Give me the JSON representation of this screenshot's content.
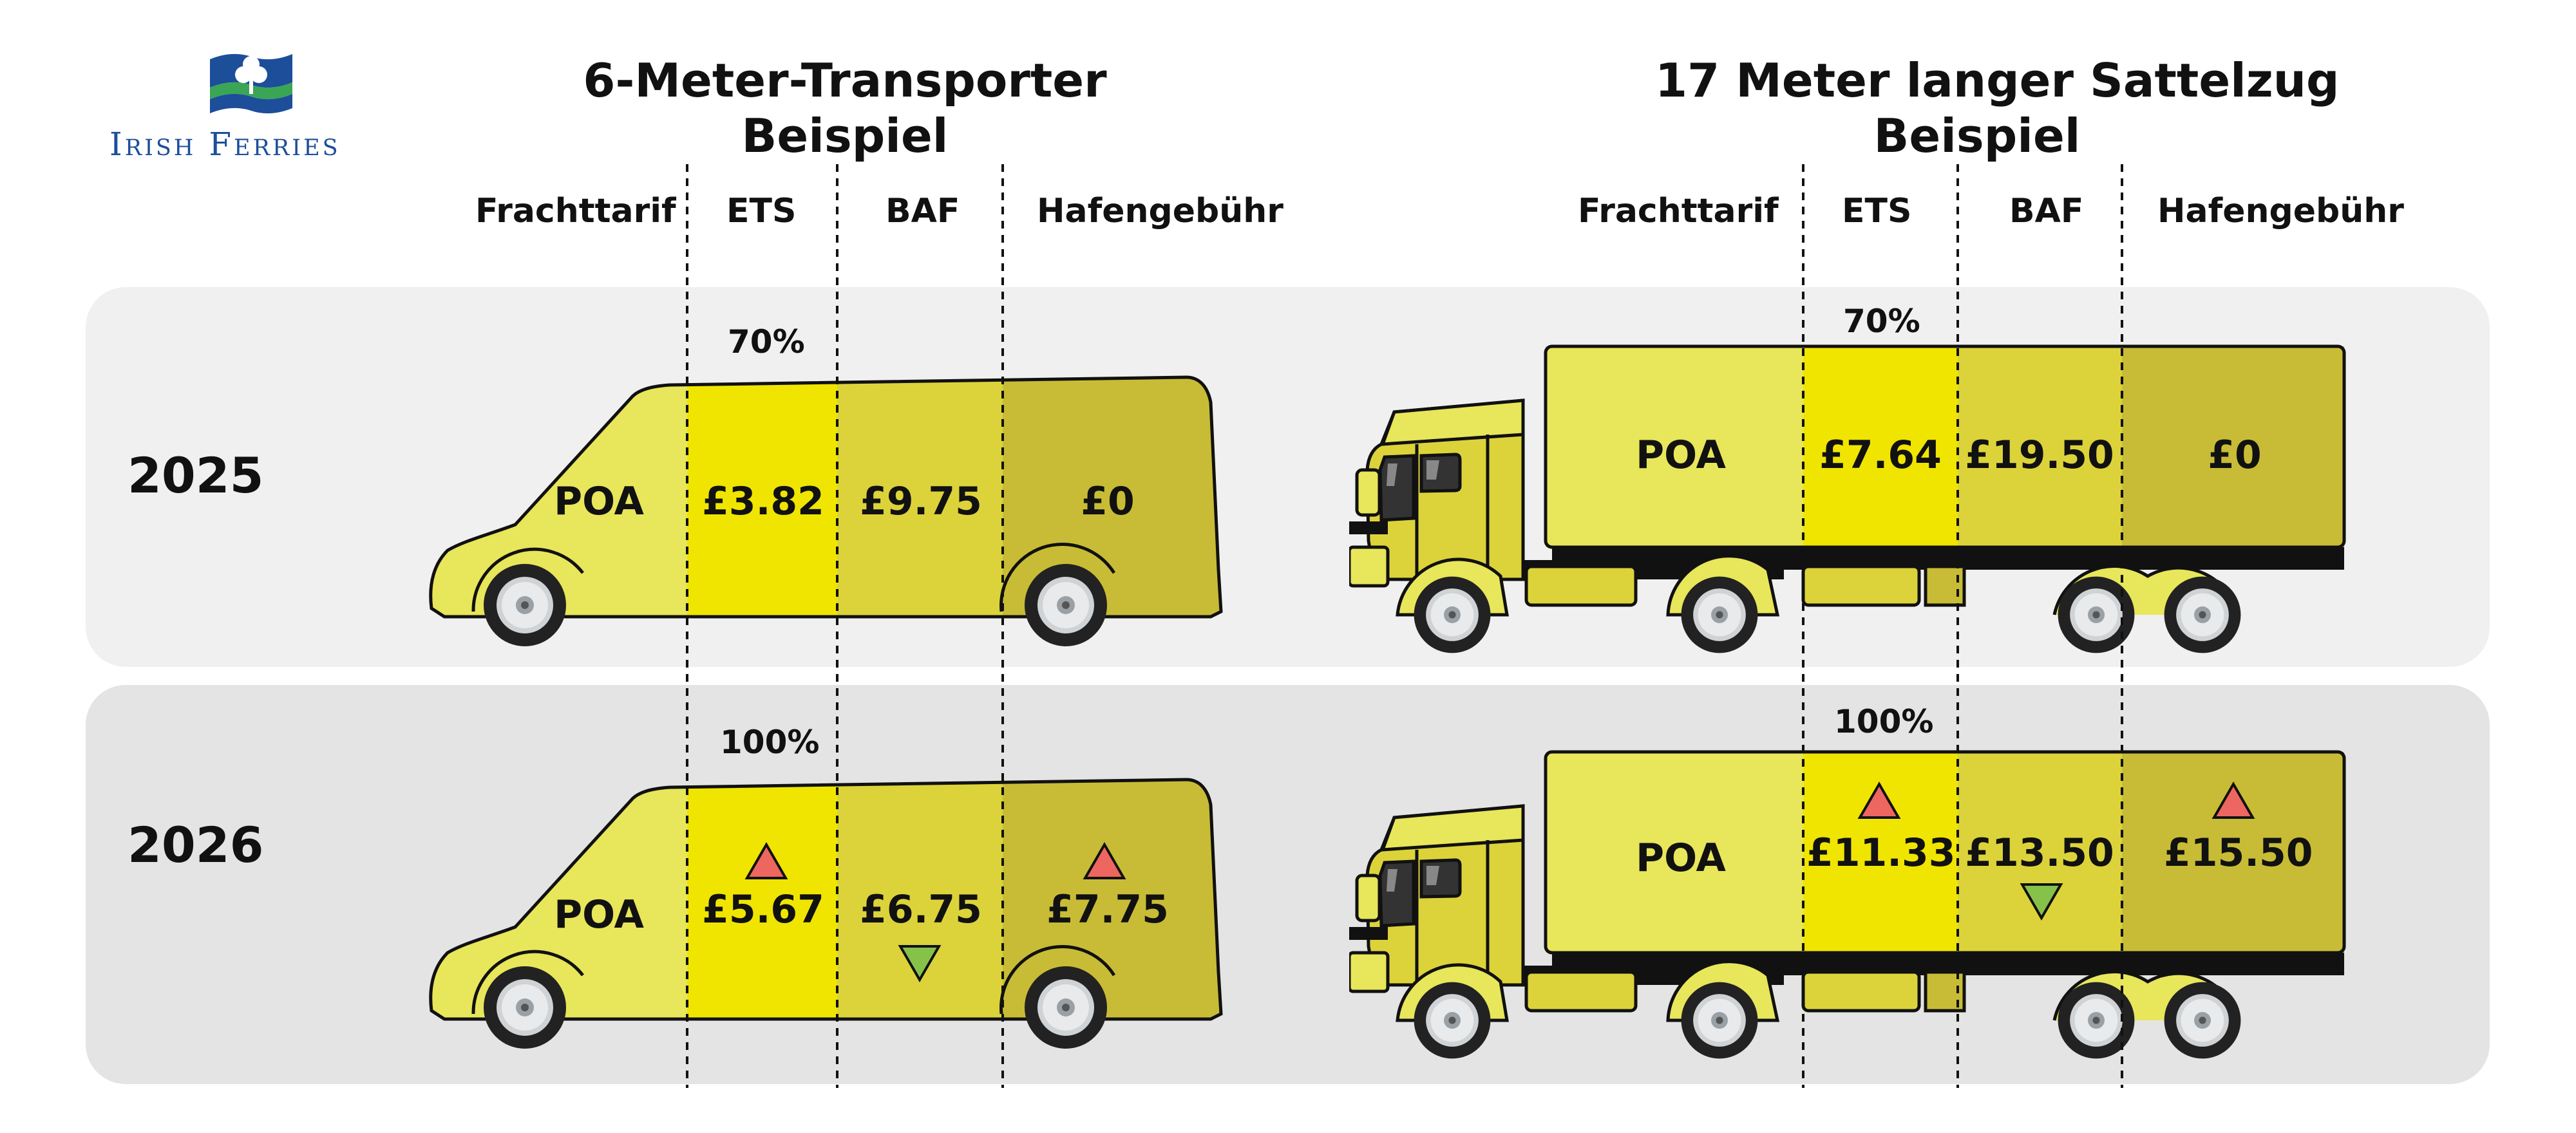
{
  "logo": {
    "brand": "Irish Ferries"
  },
  "headers": {
    "van": {
      "line1": "6-Meter-Transporter",
      "line2": "Beispiel"
    },
    "truck": {
      "line1": "17 Meter langer Sattelzug",
      "line2": "Beispiel"
    },
    "columns": [
      "Frachttarif",
      "ETS",
      "BAF",
      "Hafengebühr"
    ]
  },
  "rows": [
    {
      "year": "2025",
      "ets_share": "70%",
      "van": {
        "freight": "POA",
        "ets": "£3.82",
        "baf": "£9.75",
        "port": "£0"
      },
      "truck": {
        "freight": "POA",
        "ets": "£7.64",
        "baf": "£19.50",
        "port": "£0"
      },
      "trends": {
        "ets": "none",
        "baf": "none",
        "port": "none"
      }
    },
    {
      "year": "2026",
      "ets_share": "100%",
      "van": {
        "freight": "POA",
        "ets": "£5.67",
        "baf": "£6.75",
        "port": "£7.75"
      },
      "truck": {
        "freight": "POA",
        "ets": "£11.33",
        "baf": "£13.50",
        "port": "£15.50"
      },
      "trends": {
        "ets": "up",
        "baf": "down",
        "port": "up"
      }
    }
  ],
  "colors": {
    "freight": "#e8e65a",
    "ets": "#f0e500",
    "baf": "#dcd33a",
    "port": "#c8bc36",
    "trend_up": "#ee6660",
    "trend_down": "#86c24a",
    "logo_blue": "#1d4e9a",
    "logo_green": "#3aa655"
  }
}
